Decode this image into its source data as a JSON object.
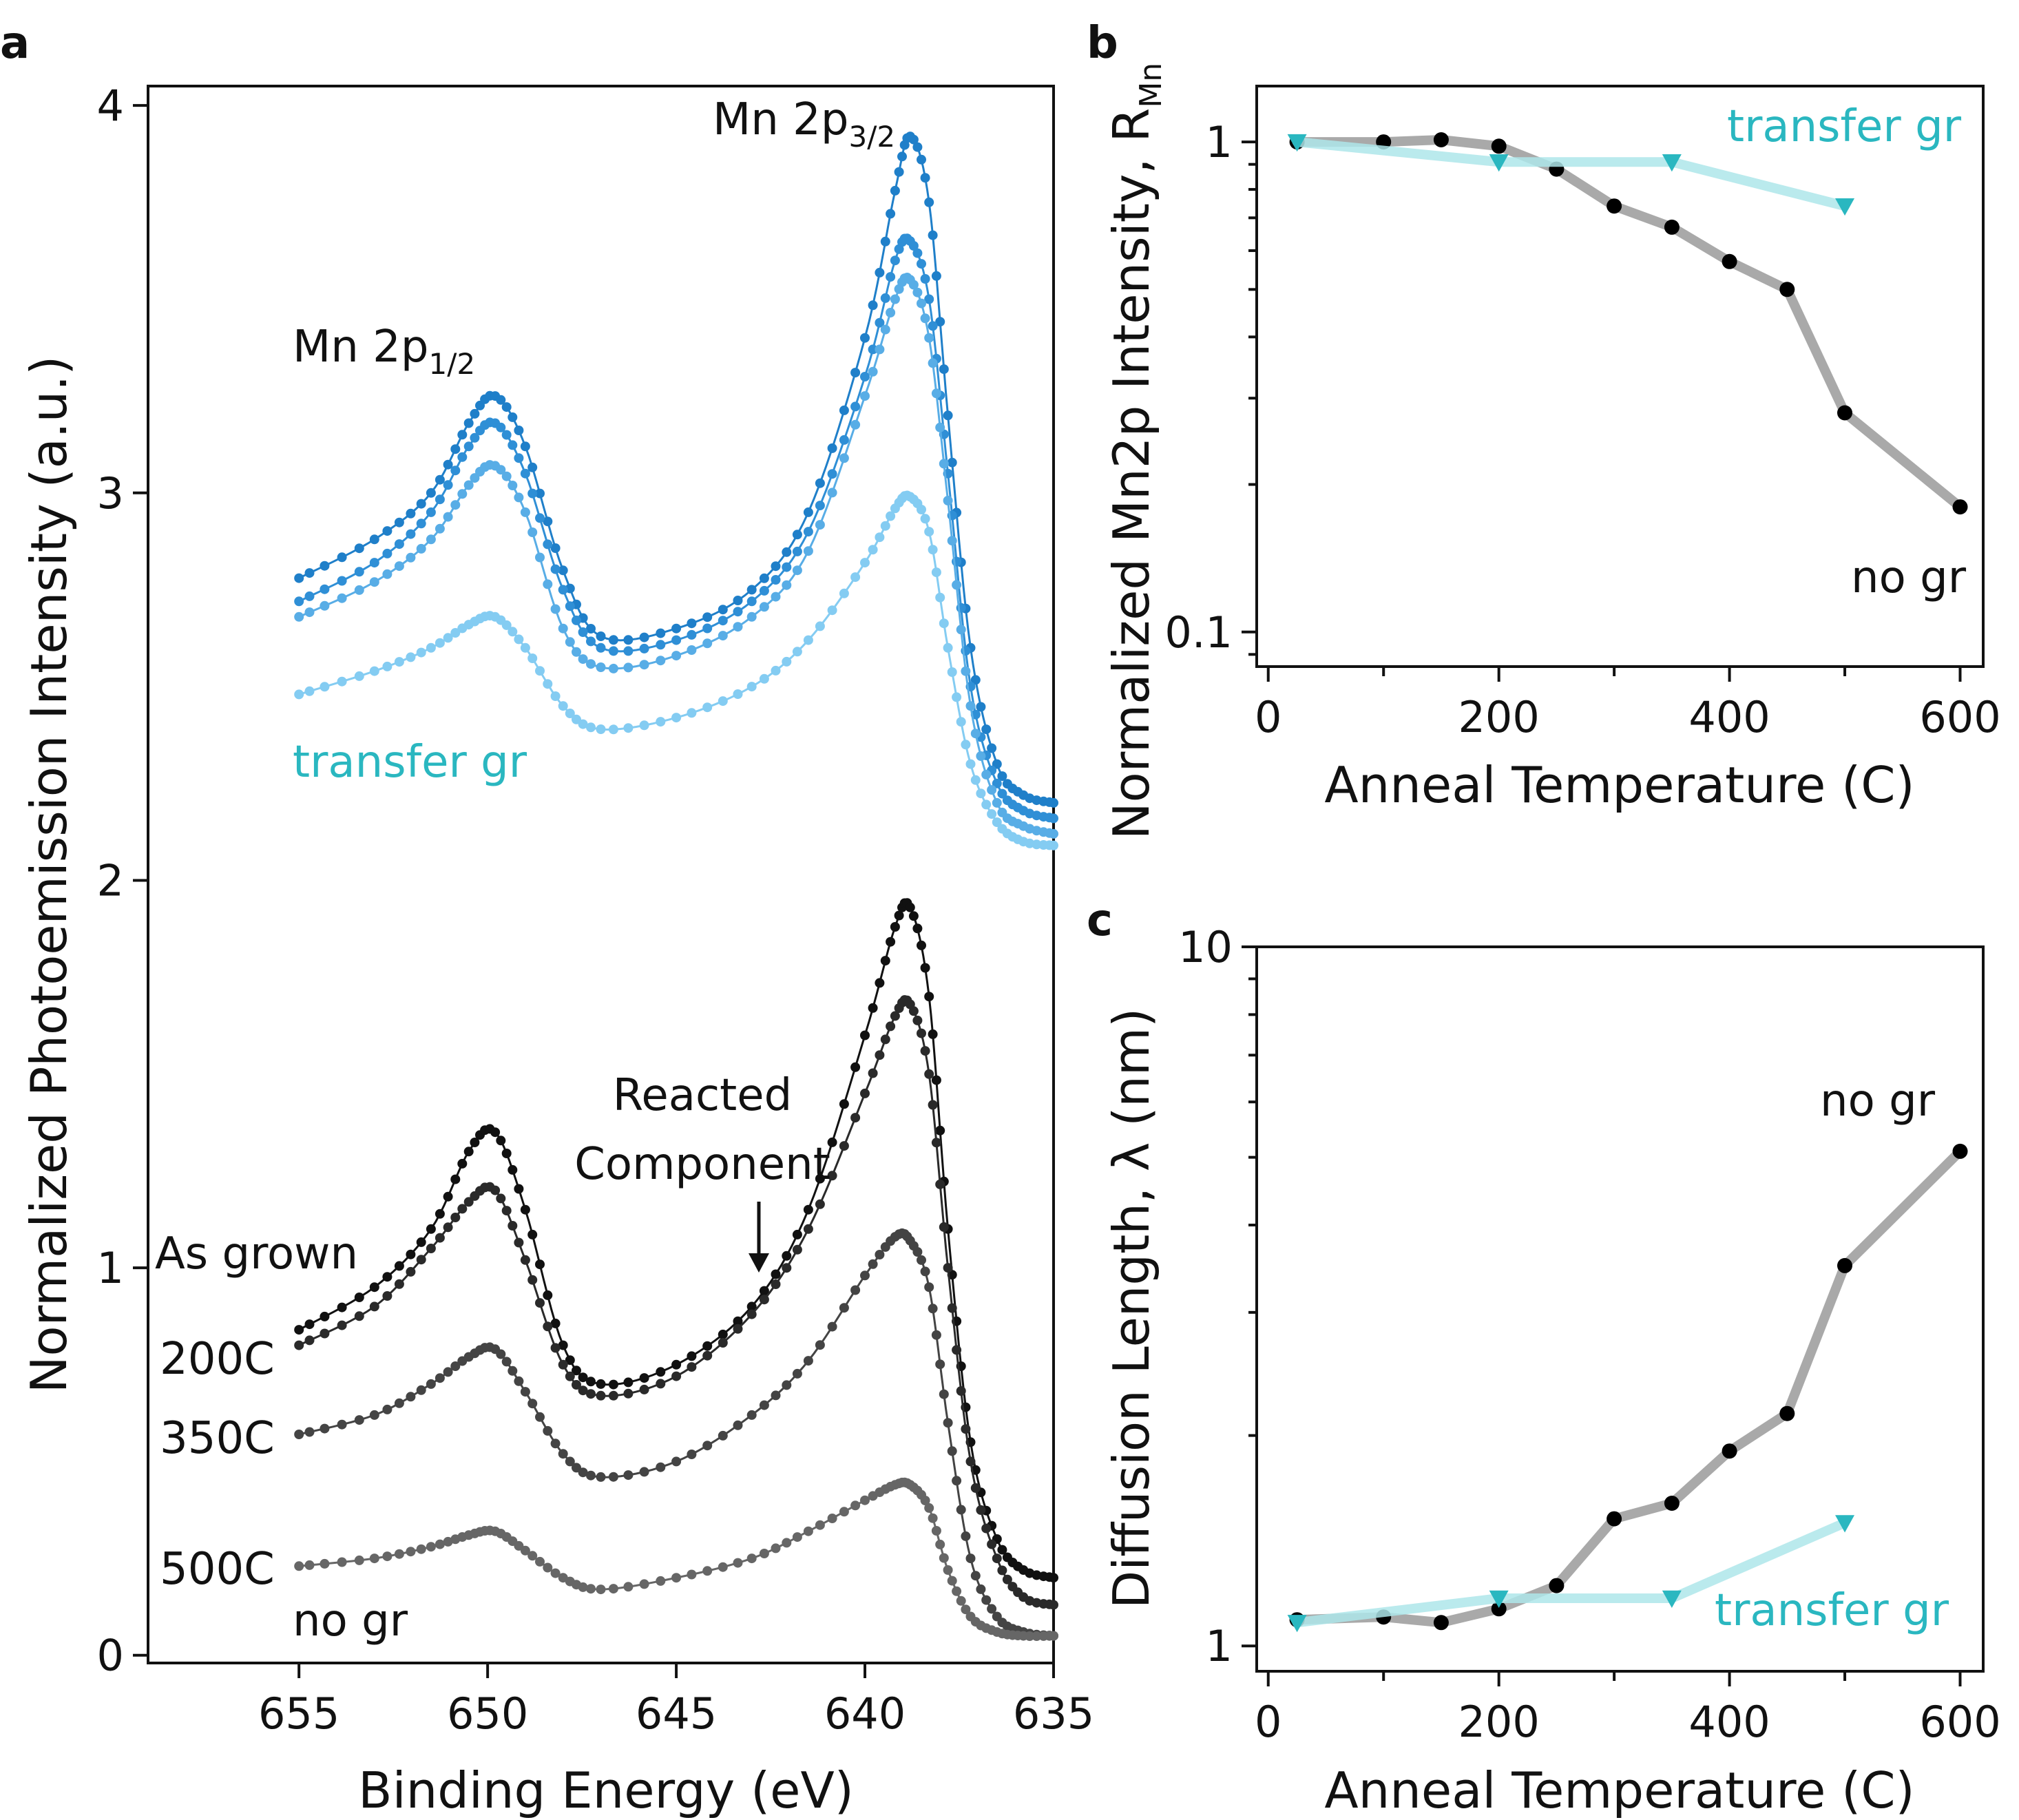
{
  "colors": {
    "as_grown_transfer": "#1f7fc9",
    "c200_transfer": "#2f8fd6",
    "c350_transfer": "#58ade6",
    "c500_transfer": "#84ccf2",
    "as_grown_no_gr": "#111111",
    "c200_no_gr": "#2a2a2a",
    "c350_no_gr": "#444444",
    "c500_no_gr": "#666666",
    "transfer_marker": "#2ab7c0",
    "transfer_line": "#aee6ea",
    "no_gr_marker": "#000000",
    "no_gr_line": "#9a9a9a"
  },
  "chart_data": [
    {
      "id": "a",
      "panel_letter": "a",
      "type": "line",
      "xlabel": "Binding Energy (eV)",
      "ylabel": "Normalized Photoemission Intensity (a.u.)",
      "xlim": [
        659,
        635
      ],
      "x_reversed": true,
      "ylim": [
        -0.02,
        4.05
      ],
      "x_ticks": [
        655,
        650,
        645,
        640,
        635
      ],
      "y_ticks": [
        0,
        1,
        2,
        3,
        4
      ],
      "annotations": {
        "mn2p12": {
          "main": "Mn 2p",
          "sub": "1/2"
        },
        "mn2p32": {
          "main": "Mn 2p",
          "sub": "3/2"
        },
        "transfer_gr": "transfer gr",
        "reacted_1": "Reacted",
        "reacted_2": "Component",
        "as_grown": "As grown",
        "c200": "200C",
        "c350": "350C",
        "c500": "500C",
        "no_gr": "no gr"
      },
      "series": [
        {
          "group": "transfer gr",
          "label": "As grown",
          "color_key": "as_grown_transfer",
          "x": [
            655,
            653,
            651.5,
            650.5,
            649.8,
            649,
            648,
            647,
            645,
            643,
            641.5,
            640,
            639.2,
            638.8,
            638.3,
            637.8,
            637.2,
            636.5,
            635.8,
            635
          ],
          "y": [
            2.78,
            2.88,
            3.0,
            3.18,
            3.25,
            3.12,
            2.8,
            2.63,
            2.65,
            2.75,
            2.95,
            3.4,
            3.78,
            3.92,
            3.75,
            3.2,
            2.6,
            2.3,
            2.22,
            2.2
          ]
        },
        {
          "group": "transfer gr",
          "label": "200C",
          "color_key": "c200_transfer",
          "x": [
            655,
            653,
            651.5,
            650.5,
            649.8,
            649,
            648,
            647,
            645,
            643,
            641.5,
            640,
            639.2,
            638.8,
            638.3,
            637.8,
            637.2,
            636.5,
            635.8,
            635
          ],
          "y": [
            2.72,
            2.82,
            2.95,
            3.12,
            3.18,
            3.05,
            2.75,
            2.6,
            2.62,
            2.72,
            2.9,
            3.3,
            3.6,
            3.65,
            3.5,
            3.05,
            2.5,
            2.25,
            2.18,
            2.16
          ]
        },
        {
          "group": "transfer gr",
          "label": "350C",
          "color_key": "c350_transfer",
          "x": [
            655,
            653,
            651.5,
            650.5,
            649.8,
            649,
            648,
            647,
            645,
            643,
            641.5,
            640,
            639.2,
            638.8,
            638.3,
            637.8,
            637.2,
            636.5,
            635.8,
            635
          ],
          "y": [
            2.68,
            2.77,
            2.88,
            3.02,
            3.07,
            2.95,
            2.65,
            2.55,
            2.58,
            2.68,
            2.85,
            3.25,
            3.5,
            3.55,
            3.4,
            2.98,
            2.45,
            2.2,
            2.14,
            2.12
          ]
        },
        {
          "group": "transfer gr",
          "label": "500C",
          "color_key": "c500_transfer",
          "x": [
            655,
            653,
            651.5,
            650.5,
            649.8,
            649,
            648,
            647,
            645,
            643,
            641.5,
            640,
            639.2,
            638.8,
            638.3,
            637.8,
            637.2,
            636.5,
            635.8,
            635
          ],
          "y": [
            2.48,
            2.54,
            2.6,
            2.66,
            2.68,
            2.6,
            2.45,
            2.39,
            2.42,
            2.5,
            2.62,
            2.82,
            2.96,
            2.99,
            2.9,
            2.6,
            2.3,
            2.15,
            2.1,
            2.09
          ]
        },
        {
          "group": "no gr",
          "label": "As grown",
          "color_key": "as_grown_no_gr",
          "x": [
            655,
            653,
            651.5,
            650.5,
            649.8,
            649,
            648,
            647,
            645,
            643,
            641.5,
            640,
            639.2,
            638.8,
            638.3,
            637.8,
            637.2,
            636.5,
            635.8,
            635
          ],
          "y": [
            0.84,
            0.95,
            1.1,
            1.3,
            1.35,
            1.15,
            0.8,
            0.7,
            0.75,
            0.9,
            1.15,
            1.6,
            1.88,
            1.93,
            1.7,
            1.1,
            0.55,
            0.3,
            0.22,
            0.2
          ]
        },
        {
          "group": "no gr",
          "label": "200C",
          "color_key": "c200_no_gr",
          "x": [
            655,
            653,
            651.5,
            650.5,
            649.8,
            649,
            648,
            647,
            645,
            643,
            641.5,
            640,
            639.2,
            638.8,
            638.3,
            637.8,
            637.2,
            636.5,
            635.8,
            635
          ],
          "y": [
            0.8,
            0.9,
            1.05,
            1.17,
            1.2,
            1.02,
            0.75,
            0.67,
            0.72,
            0.88,
            1.1,
            1.45,
            1.65,
            1.68,
            1.5,
            1.0,
            0.5,
            0.25,
            0.15,
            0.13
          ]
        },
        {
          "group": "no gr",
          "label": "350C",
          "color_key": "c350_no_gr",
          "x": [
            655,
            653,
            651.5,
            650.5,
            649.8,
            649,
            648,
            647,
            645,
            643,
            641.5,
            640,
            639.2,
            638.8,
            638.3,
            637.8,
            637.2,
            636.5,
            635.8,
            635
          ],
          "y": [
            0.57,
            0.62,
            0.7,
            0.77,
            0.79,
            0.68,
            0.52,
            0.46,
            0.5,
            0.62,
            0.76,
            0.98,
            1.08,
            1.07,
            0.95,
            0.6,
            0.25,
            0.1,
            0.06,
            0.05
          ]
        },
        {
          "group": "no gr",
          "label": "500C",
          "color_key": "c500_no_gr",
          "x": [
            655,
            653,
            651.5,
            650.5,
            649.8,
            649,
            648,
            647,
            645,
            643,
            641.5,
            640,
            639.2,
            638.8,
            638.3,
            637.8,
            637.2,
            636.5,
            635.8,
            635
          ],
          "y": [
            0.23,
            0.25,
            0.28,
            0.31,
            0.32,
            0.27,
            0.2,
            0.17,
            0.2,
            0.25,
            0.32,
            0.4,
            0.44,
            0.44,
            0.38,
            0.22,
            0.1,
            0.06,
            0.05,
            0.05
          ]
        }
      ]
    },
    {
      "id": "b",
      "panel_letter": "b",
      "type": "scatter",
      "xlabel": "Anneal Temperature (C)",
      "ylabel_main": "Normalized Mn2p Intensity, R",
      "ylabel_sub": "Mn",
      "y_scale": "log",
      "xlim": [
        -10,
        620
      ],
      "ylim": [
        0.085,
        1.3
      ],
      "x_ticks": [
        0,
        200,
        400,
        600
      ],
      "y_ticks": [
        0.1,
        1
      ],
      "y_tick_labels": [
        "0.1",
        "1"
      ],
      "labels": {
        "transfer": "transfer gr",
        "nogr": "no gr"
      },
      "series": [
        {
          "name": "no gr",
          "marker": "circle",
          "x": [
            25,
            100,
            150,
            200,
            250,
            300,
            350,
            400,
            450,
            500,
            600
          ],
          "y": [
            1.0,
            1.0,
            1.01,
            0.98,
            0.88,
            0.74,
            0.67,
            0.57,
            0.5,
            0.28,
            0.18
          ]
        },
        {
          "name": "transfer gr",
          "marker": "triangle-down",
          "x": [
            25,
            200,
            350,
            500
          ],
          "y": [
            1.0,
            0.91,
            0.91,
            0.74
          ]
        }
      ]
    },
    {
      "id": "c",
      "panel_letter": "c",
      "type": "scatter",
      "xlabel": "Anneal Temperature (C)",
      "ylabel": "Diffusion Length, λ (nm)",
      "y_scale": "log",
      "xlim": [
        -10,
        620
      ],
      "ylim": [
        0.92,
        10.0
      ],
      "x_ticks": [
        0,
        200,
        400,
        600
      ],
      "y_ticks": [
        1,
        10
      ],
      "y_tick_labels": [
        "1",
        "10"
      ],
      "labels": {
        "transfer": "transfer gr",
        "nogr": "no gr"
      },
      "series": [
        {
          "name": "no gr",
          "marker": "circle",
          "x": [
            25,
            100,
            150,
            200,
            250,
            300,
            350,
            400,
            450,
            500,
            600
          ],
          "y": [
            1.09,
            1.1,
            1.08,
            1.13,
            1.22,
            1.52,
            1.6,
            1.9,
            2.15,
            3.5,
            5.1
          ]
        },
        {
          "name": "transfer gr",
          "marker": "triangle-down",
          "x": [
            25,
            200,
            350,
            500
          ],
          "y": [
            1.08,
            1.17,
            1.17,
            1.5
          ]
        }
      ]
    }
  ]
}
